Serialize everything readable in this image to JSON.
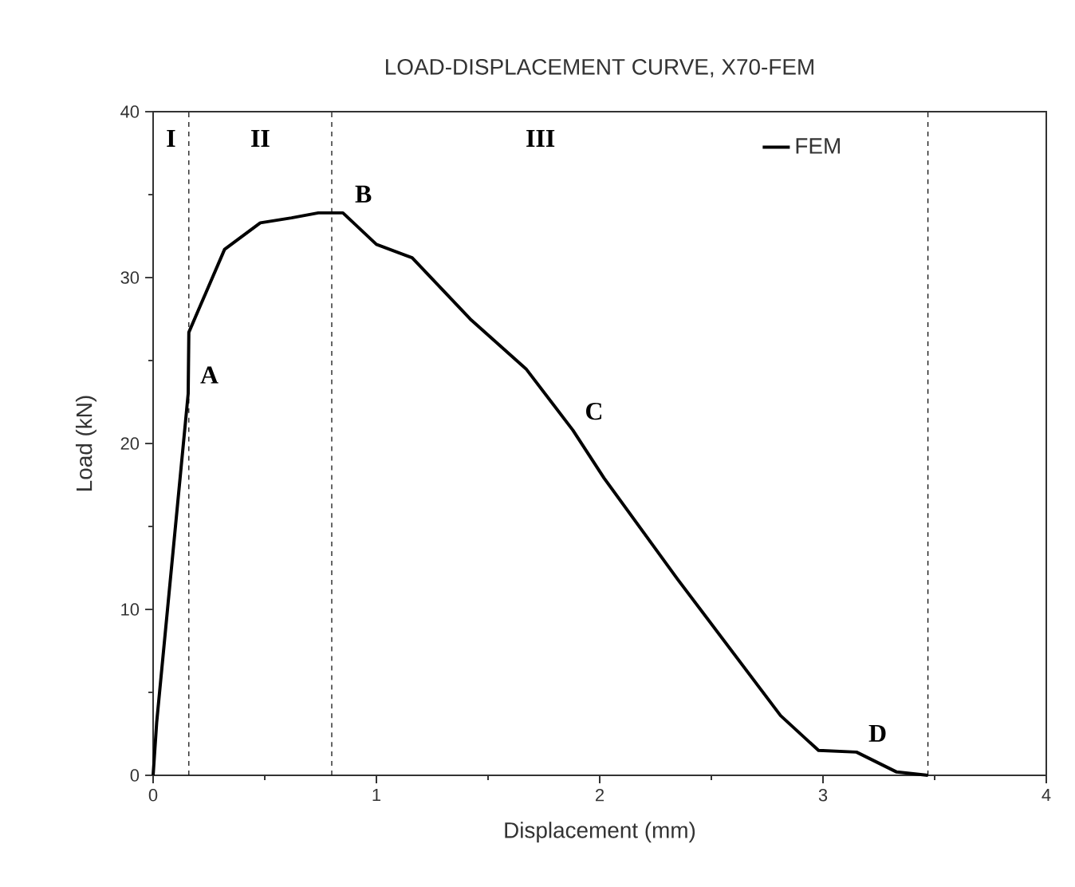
{
  "chart_data": {
    "type": "line",
    "title": "LOAD-DISPLACEMENT CURVE, X70-FEM",
    "xlabel": "Displacement (mm)",
    "ylabel": "Load (kN)",
    "x": [
      0,
      0.016,
      0.157,
      0.16,
      0.32,
      0.48,
      0.62,
      0.74,
      0.85,
      1.0,
      1.16,
      1.42,
      1.67,
      1.88,
      2.02,
      2.35,
      2.81,
      2.98,
      3.15,
      3.33,
      3.47
    ],
    "series": [
      {
        "name": "FEM",
        "color": "#000000",
        "values": [
          0,
          3.2,
          23.0,
          26.7,
          31.7,
          33.3,
          33.6,
          33.9,
          33.9,
          32.0,
          31.2,
          27.5,
          24.5,
          20.8,
          17.9,
          11.8,
          3.6,
          1.5,
          1.4,
          0.2,
          0
        ]
      }
    ],
    "xlim": [
      0,
      4
    ],
    "ylim": [
      0,
      40
    ],
    "xticks": [
      0,
      1,
      2,
      3,
      4
    ],
    "yticks": [
      0,
      10,
      20,
      30,
      40
    ],
    "ref_lines": [
      {
        "axis": "x",
        "value": 0.16,
        "line_style": "dashed"
      },
      {
        "axis": "x",
        "value": 0.8,
        "line_style": "dashed"
      },
      {
        "axis": "x",
        "value": 3.47,
        "line_style": "dashed"
      }
    ],
    "annotations": [
      "I",
      "II",
      "III",
      {
        "text": "A",
        "x": 0.157,
        "y": 23.0
      },
      {
        "text": "B",
        "x": 0.85,
        "y": 33.9
      },
      {
        "text": "C",
        "x": 1.88,
        "y": 20.8
      },
      {
        "text": "D",
        "x": 3.15,
        "y": 1.4
      }
    ],
    "legend": "top right",
    "grid": false,
    "marker": "none",
    "line_style": "solid"
  }
}
